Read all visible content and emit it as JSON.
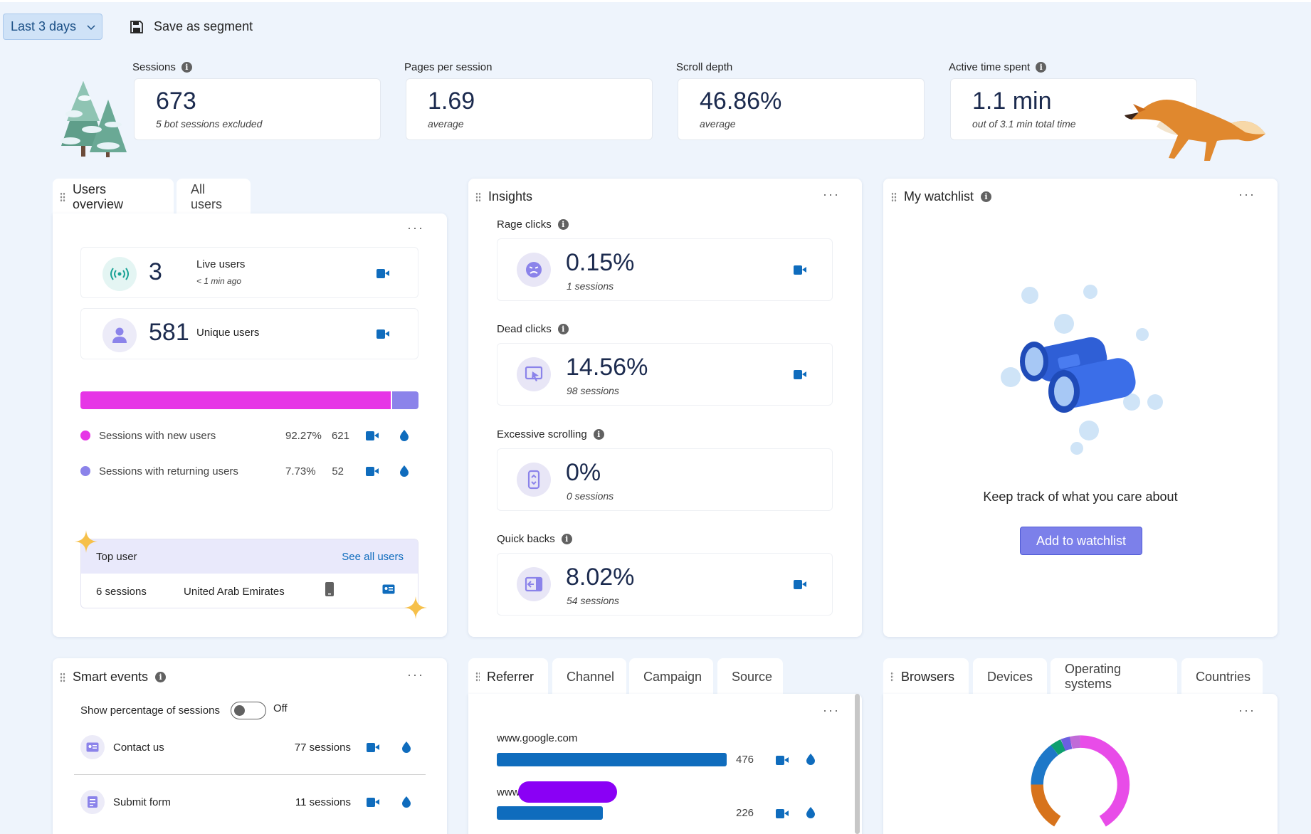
{
  "toolbar": {
    "date_range": "Last 3 days",
    "save_segment": "Save as segment"
  },
  "kpis": [
    {
      "label": "Sessions",
      "value": "673",
      "sub": "5 bot sessions excluded"
    },
    {
      "label": "Pages per session",
      "value": "1.69",
      "sub": "average"
    },
    {
      "label": "Scroll depth",
      "value": "46.86%",
      "sub": "average"
    },
    {
      "label": "Active time spent",
      "value": "1.1 min",
      "sub": "out of 3.1 min total time"
    }
  ],
  "users_overview": {
    "tab_active": "Users overview",
    "tab_other": "All users",
    "live": {
      "value": "3",
      "label": "Live users",
      "sub": "< 1 min ago"
    },
    "unique": {
      "value": "581",
      "label": "Unique users"
    },
    "split_new_fraction": 0.9227,
    "legend": [
      {
        "label": "Sessions with new users",
        "pct": "92.27%",
        "count": "621",
        "color": "#e635e6"
      },
      {
        "label": "Sessions with returning users",
        "pct": "7.73%",
        "count": "52",
        "color": "#8b83ea"
      }
    ],
    "top_user": {
      "title": "Top user",
      "link": "See all users",
      "sessions": "6 sessions",
      "country": "United Arab Emirates"
    }
  },
  "insights": {
    "title": "Insights",
    "items": [
      {
        "label": "Rage clicks",
        "value": "0.15%",
        "sub": "1 sessions"
      },
      {
        "label": "Dead clicks",
        "value": "14.56%",
        "sub": "98 sessions"
      },
      {
        "label": "Excessive scrolling",
        "value": "0%",
        "sub": "0 sessions"
      },
      {
        "label": "Quick backs",
        "value": "8.02%",
        "sub": "54 sessions"
      }
    ]
  },
  "watchlist": {
    "title": "My watchlist",
    "message": "Keep track of what you care about",
    "button": "Add to watchlist"
  },
  "smart_events": {
    "title": "Smart events",
    "toggle_label": "Show percentage of sessions",
    "toggle_state": "Off",
    "items": [
      {
        "label": "Contact us",
        "count": "77 sessions"
      },
      {
        "label": "Submit form",
        "count": "11 sessions"
      }
    ]
  },
  "traffic": {
    "tabs": [
      "Referrer",
      "Channel",
      "Campaign",
      "Source"
    ],
    "rows": [
      {
        "label": "www.google.com",
        "value": 476,
        "value_text": "476"
      },
      {
        "label": "www",
        "value": 226,
        "value_text": "226"
      }
    ]
  },
  "tech": {
    "tabs": [
      "Browsers",
      "Devices",
      "Operating systems",
      "Countries"
    ]
  },
  "colors": {
    "accent": "#0f6cbd",
    "new_users": "#e635e6",
    "returning_users": "#8b83ea",
    "redaction": "#8a00f5"
  }
}
